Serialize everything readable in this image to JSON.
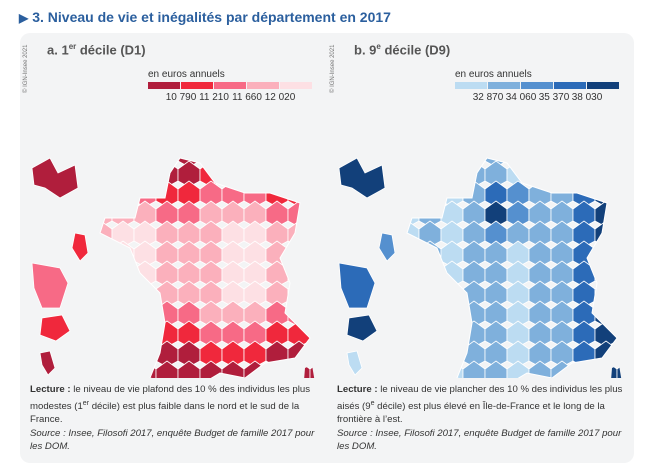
{
  "title": "3. Niveau de vie et inégalités par département en 2017",
  "title_icon": "triangle-right-icon",
  "chart_data": [
    {
      "type": "choropleth",
      "title_prefix": "a. 1",
      "title_sup": "er",
      "title_suffix": " décile (D1)",
      "copyright": "© IGN-Insee 2021",
      "legend_title": "en euros annuels",
      "colors": [
        "#b01e3c",
        "#f0283c",
        "#f76a86",
        "#fbb0bc",
        "#fde0e4"
      ],
      "breaks": [
        "10 790",
        "11 210",
        "11 660",
        "12 020"
      ],
      "pattern": "low-north-south",
      "note": {
        "lead": "Lecture :",
        "text_a": " le niveau de vie plafond des 10 % des individus les plus modestes (1",
        "sup": "er",
        "text_b": " décile) est plus faible dans le nord et le sud de la France.",
        "source": "Source : Insee, Filosofi 2017, enquête Budget de famille 2017 pour les DOM."
      }
    },
    {
      "type": "choropleth",
      "title_prefix": "b. 9",
      "title_sup": "e",
      "title_suffix": " décile (D9)",
      "copyright": "© IGN-Insee 2021",
      "legend_title": "en euros annuels",
      "colors": [
        "#bcdcf2",
        "#7fb0dc",
        "#5590cf",
        "#2c6bb8",
        "#12407a"
      ],
      "breaks": [
        "32 870",
        "34 060",
        "35 370",
        "38 030"
      ],
      "pattern": "high-idf-east",
      "note": {
        "lead": "Lecture :",
        "text_a": " le niveau de vie plancher des 10 % des individus les plus aisés (9",
        "sup": "e",
        "text_b": " décile) est plus élevé en Île-de-France et le long de la frontière à l’est.",
        "source": "Source : Insee, Filosofi 2017, enquête Budget de famille 2017 pour les DOM."
      }
    }
  ]
}
